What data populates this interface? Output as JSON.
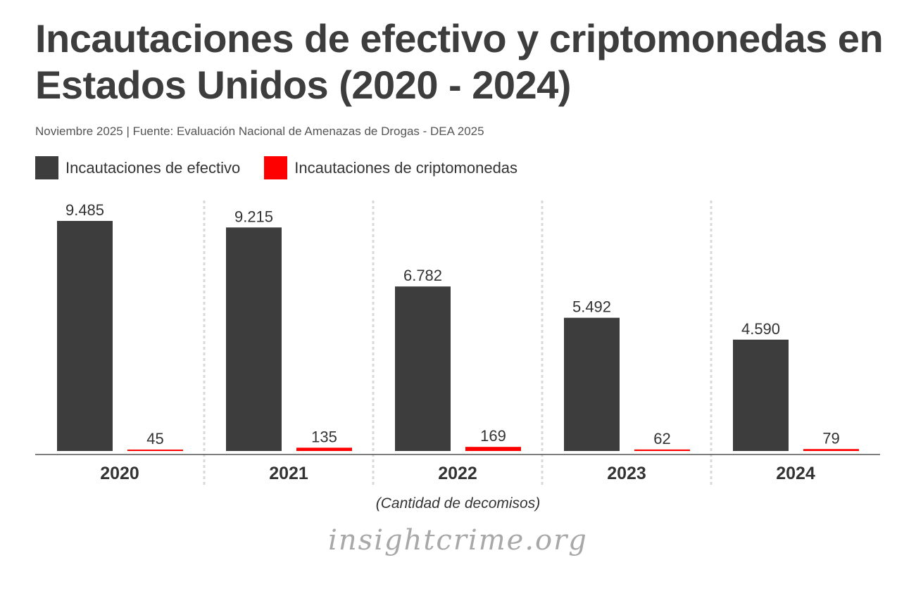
{
  "chart_data": {
    "type": "bar",
    "title": "Incautaciones de efectivo y criptomonedas en Estados Unidos (2020 - 2024)",
    "subtitle": "Noviembre 2025 | Fuente: Evaluación Nacional de Amenazas de Drogas - DEA 2025",
    "categories": [
      "2020",
      "2021",
      "2022",
      "2023",
      "2024"
    ],
    "series": [
      {
        "name": "Incautaciones de efectivo",
        "color": "#3d3d3d",
        "values": [
          9485,
          9215,
          6782,
          5492,
          4590
        ],
        "labels": [
          "9.485",
          "9.215",
          "6.782",
          "5.492",
          "4.590"
        ]
      },
      {
        "name": "Incautaciones de criptomonedas",
        "color": "#ff0000",
        "values": [
          45,
          135,
          169,
          62,
          79
        ],
        "labels": [
          "45",
          "135",
          "169",
          "62",
          "79"
        ]
      }
    ],
    "xlabel": "(Cantidad de decomisos)",
    "ylabel": "",
    "ylim": [
      0,
      9485
    ],
    "grid": false,
    "legend": "top-left"
  },
  "footer": {
    "brand": "insightcrime.org"
  }
}
